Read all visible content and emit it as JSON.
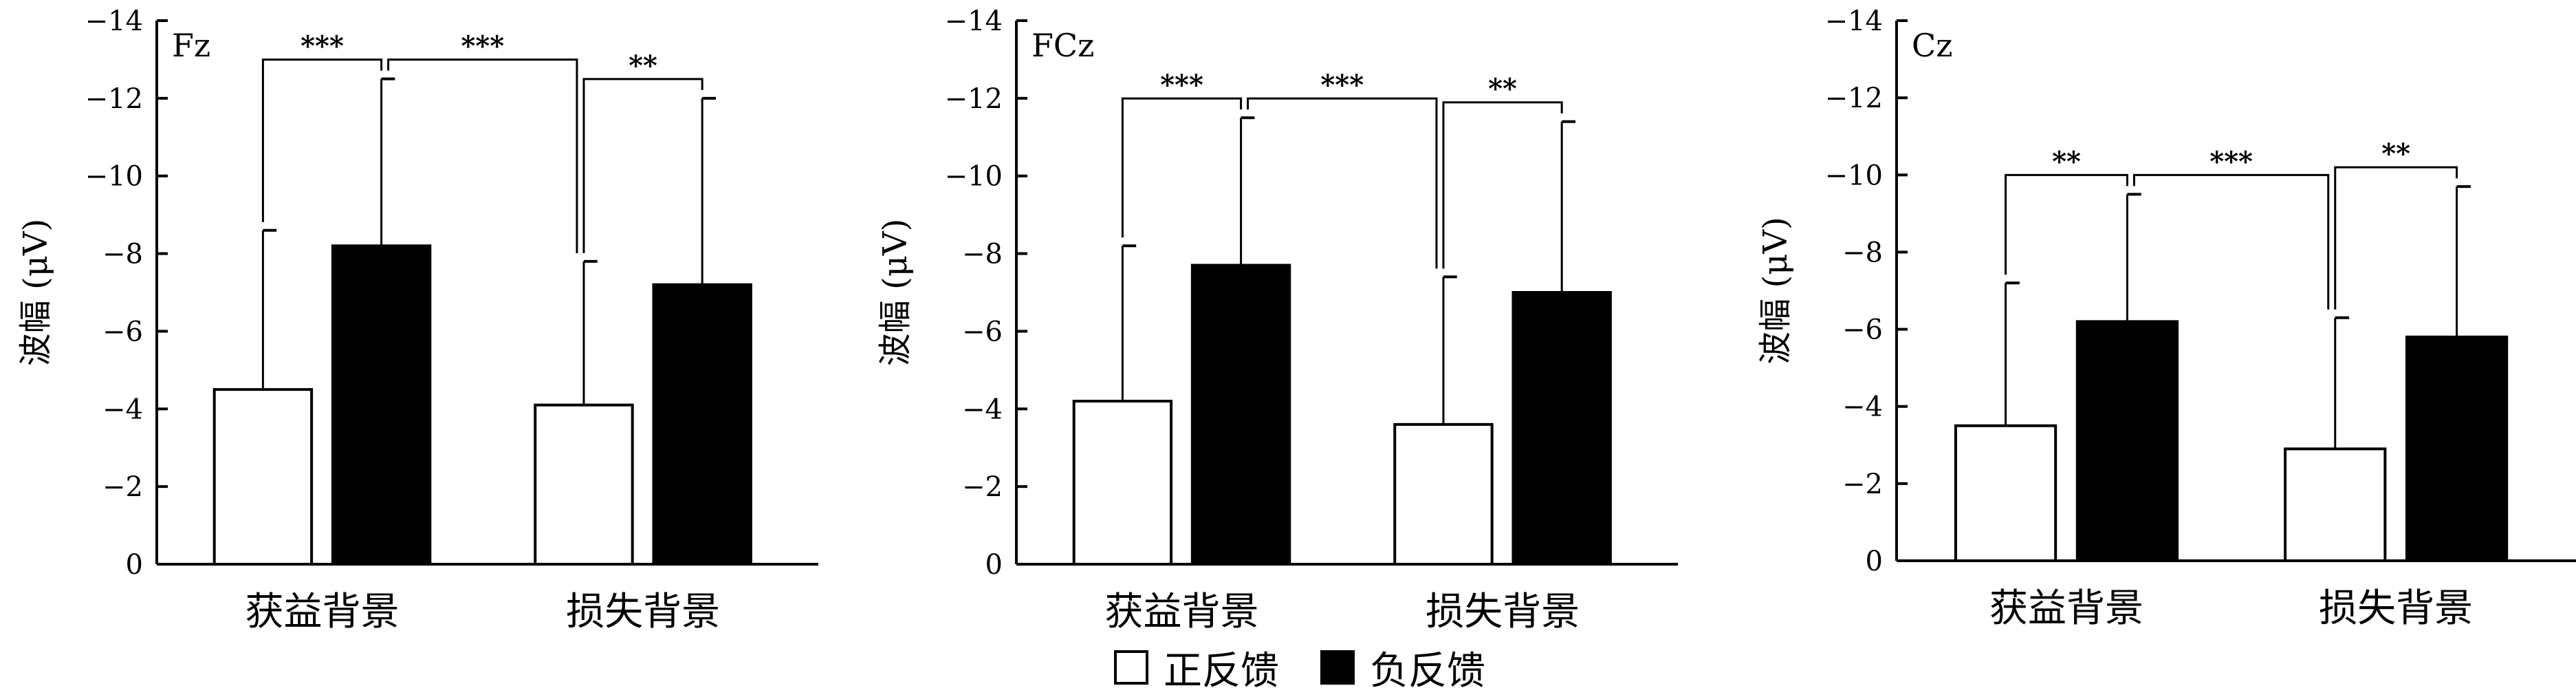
{
  "legend": [
    {
      "label": "正反馈",
      "color": "#ffffff"
    },
    {
      "label": "负反馈",
      "color": "#000000"
    }
  ],
  "chart_data": [
    {
      "type": "bar",
      "title": "Fz",
      "ylabel": "波幅 (μV)",
      "ylim": [
        0,
        -14
      ],
      "yticks": [
        "0",
        "−2",
        "−4",
        "−6",
        "−8",
        "−10",
        "−12",
        "−14"
      ],
      "categories": [
        "获益背景",
        "损失背景"
      ],
      "series": [
        {
          "name": "正反馈",
          "color": "#ffffff",
          "values": [
            -4.5,
            -4.1
          ],
          "error": [
            4.1,
            3.7
          ]
        },
        {
          "name": "负反馈",
          "color": "#000000",
          "values": [
            -8.2,
            -7.2
          ],
          "error": [
            4.3,
            4.8
          ]
        }
      ],
      "significance": [
        "***",
        "***",
        "**"
      ]
    },
    {
      "type": "bar",
      "title": "FCz",
      "ylabel": "波幅 (μV)",
      "ylim": [
        0,
        -14
      ],
      "yticks": [
        "0",
        "−2",
        "−4",
        "−6",
        "−8",
        "−10",
        "−12",
        "−14"
      ],
      "categories": [
        "获益背景",
        "损失背景"
      ],
      "series": [
        {
          "name": "正反馈",
          "color": "#ffffff",
          "values": [
            -4.2,
            -3.6
          ],
          "error": [
            4.0,
            3.8
          ]
        },
        {
          "name": "负反馈",
          "color": "#000000",
          "values": [
            -7.7,
            -7.0
          ],
          "error": [
            3.8,
            4.4
          ]
        }
      ],
      "significance": [
        "***",
        "***",
        "**"
      ]
    },
    {
      "type": "bar",
      "title": "Cz",
      "ylabel": "波幅 (μV)",
      "ylim": [
        0,
        -14
      ],
      "yticks": [
        "0",
        "−2",
        "−4",
        "−6",
        "−8",
        "−10",
        "−12",
        "−14"
      ],
      "categories": [
        "获益背景",
        "损失背景"
      ],
      "series": [
        {
          "name": "正反馈",
          "color": "#ffffff",
          "values": [
            -3.5,
            -2.9
          ],
          "error": [
            3.7,
            3.4
          ]
        },
        {
          "name": "负反馈",
          "color": "#000000",
          "values": [
            -6.2,
            -5.8
          ],
          "error": [
            3.3,
            3.9
          ]
        }
      ],
      "significance": [
        "**",
        "***",
        "**"
      ]
    }
  ]
}
